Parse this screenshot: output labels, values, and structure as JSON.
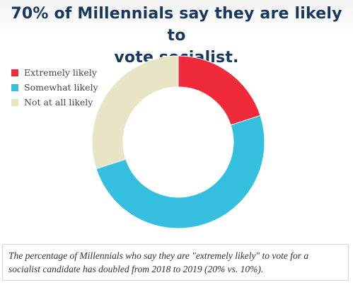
{
  "chart_data": {
    "type": "pie",
    "title": "70% of Millennials say they are likely to vote socialist.",
    "categories": [
      "Extremely likely",
      "Somewhat likely",
      "Not at all likely"
    ],
    "values": [
      20,
      50,
      30
    ],
    "colors": [
      "#ee2a3b",
      "#33bfdd",
      "#e8e5c6"
    ],
    "donut": true,
    "legend_position": "top-left",
    "caption": "The percentage of Millennials who say they are \"extremely likely\" to vote for a socialist candidate has doubled from 2018 to 2019 (20% vs. 10%)."
  }
}
